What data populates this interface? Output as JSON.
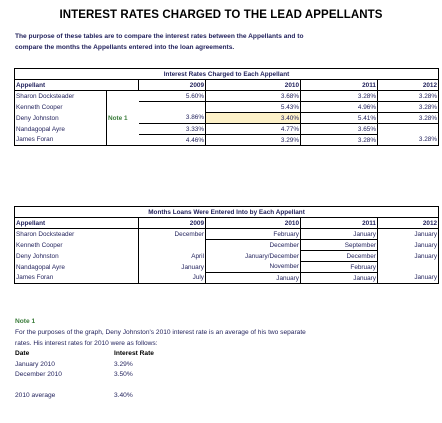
{
  "title": "INTEREST RATES CHARGED TO THE LEAD APPELLANTS",
  "intro": {
    "line1": "The purpose of these tables are to compare the interest rates between the Appellants and to",
    "line2": "compare the months the Appellants entered into the loan agreements."
  },
  "rates_table": {
    "caption": "Interest Rates Charged to Each Appellant",
    "headers": [
      "Appellant",
      "2009",
      "2010",
      "2011",
      "2012"
    ],
    "rows": [
      {
        "name": "Sharon Docksteader",
        "note": "",
        "y2009": "5.60%",
        "y2010": "3.68%",
        "y2011": "3.28%",
        "y2012": "3.28%"
      },
      {
        "name": "Kenneth Cooper",
        "note": "",
        "y2009": "",
        "y2010": "5.43%",
        "y2011": "4.96%",
        "y2012": "3.28%"
      },
      {
        "name": "Deny Johnston",
        "note": "Note 1",
        "y2009": "3.86%",
        "y2010": "3.40%",
        "y2011": "5.41%",
        "y2012": "3.28%"
      },
      {
        "name": "Nandagopal Ayre",
        "note": "",
        "y2009": "3.33%",
        "y2010": "4.77%",
        "y2011": "3.65%",
        "y2012": ""
      },
      {
        "name": "James Foran",
        "note": "",
        "y2009": "4.46%",
        "y2010": "3.29%",
        "y2011": "3.28%",
        "y2012": "3.28%"
      }
    ]
  },
  "months_table": {
    "caption": "Months Loans Were Entered Into by Each Appellant",
    "headers": [
      "Appellant",
      "2009",
      "2010",
      "2011",
      "2012"
    ],
    "rows": [
      {
        "name": "Sharon Docksteader",
        "y2009": "December",
        "y2010": "February",
        "y2011": "January",
        "y2012": "January"
      },
      {
        "name": "Kenneth Cooper",
        "y2009": "",
        "y2010": "December",
        "y2011": "September",
        "y2012": "January"
      },
      {
        "name": "Deny Johnston",
        "y2009": "April",
        "y2010": "January/December",
        "y2011": "December",
        "y2012": "January"
      },
      {
        "name": "Nandagopal Ayre",
        "y2009": "January",
        "y2010": "November",
        "y2011": "February",
        "y2012": ""
      },
      {
        "name": "James Foran",
        "y2009": "July",
        "y2010": "January",
        "y2011": "January",
        "y2012": "January"
      }
    ]
  },
  "note1": {
    "title": "Note 1",
    "text1": "For the purposes of the graph, Deny Johnston's 2010 interest rate is an average of his two separate",
    "text2": "rates. His interest rates for 2010 were as follows:",
    "col_date": "Date",
    "col_rate": "Interest Rate",
    "entries": [
      {
        "date": "January 2010",
        "rate": "3.29%"
      },
      {
        "date": "December 2010",
        "rate": "3.50%"
      }
    ],
    "average_label": "2010 average",
    "average_value": "3.40%"
  },
  "colors": {
    "note_green": "#3a7c3a",
    "text_navy": "#1f1f5a",
    "highlight": "#fdf1c8"
  }
}
